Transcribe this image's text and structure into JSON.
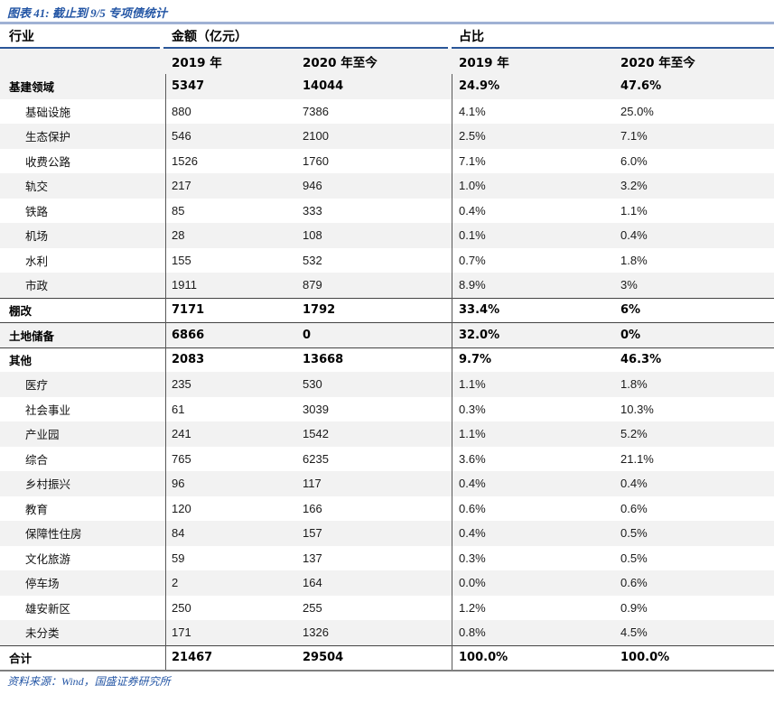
{
  "title": "图表 41: 截止到 9/5 专项债统计",
  "source": "资料来源：Wind，国盛证券研究所",
  "colors": {
    "accent_blue": "#2456A5",
    "header_rule_dark": "#2A5699",
    "header_rule_light": "#9FB1D4",
    "stripe_gray": "#F2F2F2",
    "section_rule": "#444444",
    "divider_gray": "#595959",
    "bottom_rule": "#7F7F7F"
  },
  "table": {
    "group_headers": [
      "行业",
      "金额（亿元）",
      "占比"
    ],
    "sub_headers": [
      "2019 年",
      "2020 年至今",
      "2019 年",
      "2020 年至今"
    ],
    "rows": [
      {
        "label": "基建领域",
        "amt_2019": "5347",
        "amt_2020": "14044",
        "pct_2019": "24.9%",
        "pct_2020": "47.6%",
        "style": "section",
        "stripe": true,
        "sep_top": false
      },
      {
        "label": "基础设施",
        "amt_2019": "880",
        "amt_2020": "7386",
        "pct_2019": "4.1%",
        "pct_2020": "25.0%",
        "style": "sub",
        "stripe": false,
        "sep_top": false
      },
      {
        "label": "生态保护",
        "amt_2019": "546",
        "amt_2020": "2100",
        "pct_2019": "2.5%",
        "pct_2020": "7.1%",
        "style": "sub",
        "stripe": true,
        "sep_top": false
      },
      {
        "label": "收费公路",
        "amt_2019": "1526",
        "amt_2020": "1760",
        "pct_2019": "7.1%",
        "pct_2020": "6.0%",
        "style": "sub",
        "stripe": false,
        "sep_top": false
      },
      {
        "label": "轨交",
        "amt_2019": "217",
        "amt_2020": "946",
        "pct_2019": "1.0%",
        "pct_2020": "3.2%",
        "style": "sub",
        "stripe": true,
        "sep_top": false
      },
      {
        "label": "铁路",
        "amt_2019": "85",
        "amt_2020": "333",
        "pct_2019": "0.4%",
        "pct_2020": "1.1%",
        "style": "sub",
        "stripe": false,
        "sep_top": false
      },
      {
        "label": "机场",
        "amt_2019": "28",
        "amt_2020": "108",
        "pct_2019": "0.1%",
        "pct_2020": "0.4%",
        "style": "sub",
        "stripe": true,
        "sep_top": false
      },
      {
        "label": "水利",
        "amt_2019": "155",
        "amt_2020": "532",
        "pct_2019": "0.7%",
        "pct_2020": "1.8%",
        "style": "sub",
        "stripe": false,
        "sep_top": false
      },
      {
        "label": "市政",
        "amt_2019": "1911",
        "amt_2020": "879",
        "pct_2019": "8.9%",
        "pct_2020": "3%",
        "style": "sub",
        "stripe": true,
        "sep_top": false
      },
      {
        "label": "棚改",
        "amt_2019": "7171",
        "amt_2020": "1792",
        "pct_2019": "33.4%",
        "pct_2020": "6%",
        "style": "section",
        "stripe": false,
        "sep_top": true
      },
      {
        "label": "土地储备",
        "amt_2019": "6866",
        "amt_2020": "0",
        "pct_2019": "32.0%",
        "pct_2020": "0%",
        "style": "section",
        "stripe": true,
        "sep_top": true
      },
      {
        "label": "其他",
        "amt_2019": "2083",
        "amt_2020": "13668",
        "pct_2019": "9.7%",
        "pct_2020": "46.3%",
        "style": "section",
        "stripe": false,
        "sep_top": true
      },
      {
        "label": "医疗",
        "amt_2019": "235",
        "amt_2020": "530",
        "pct_2019": "1.1%",
        "pct_2020": "1.8%",
        "style": "sub",
        "stripe": true,
        "sep_top": false
      },
      {
        "label": "社会事业",
        "amt_2019": "61",
        "amt_2020": "3039",
        "pct_2019": "0.3%",
        "pct_2020": "10.3%",
        "style": "sub",
        "stripe": false,
        "sep_top": false
      },
      {
        "label": "产业园",
        "amt_2019": "241",
        "amt_2020": "1542",
        "pct_2019": "1.1%",
        "pct_2020": "5.2%",
        "style": "sub",
        "stripe": true,
        "sep_top": false
      },
      {
        "label": "综合",
        "amt_2019": "765",
        "amt_2020": "6235",
        "pct_2019": "3.6%",
        "pct_2020": "21.1%",
        "style": "sub",
        "stripe": false,
        "sep_top": false
      },
      {
        "label": "乡村振兴",
        "amt_2019": "96",
        "amt_2020": "117",
        "pct_2019": "0.4%",
        "pct_2020": "0.4%",
        "style": "sub",
        "stripe": true,
        "sep_top": false
      },
      {
        "label": "教育",
        "amt_2019": "120",
        "amt_2020": "166",
        "pct_2019": "0.6%",
        "pct_2020": "0.6%",
        "style": "sub",
        "stripe": false,
        "sep_top": false
      },
      {
        "label": "保障性住房",
        "amt_2019": "84",
        "amt_2020": "157",
        "pct_2019": "0.4%",
        "pct_2020": "0.5%",
        "style": "sub",
        "stripe": true,
        "sep_top": false
      },
      {
        "label": "文化旅游",
        "amt_2019": "59",
        "amt_2020": "137",
        "pct_2019": "0.3%",
        "pct_2020": "0.5%",
        "style": "sub",
        "stripe": false,
        "sep_top": false
      },
      {
        "label": "停车场",
        "amt_2019": "2",
        "amt_2020": "164",
        "pct_2019": "0.0%",
        "pct_2020": "0.6%",
        "style": "sub",
        "stripe": true,
        "sep_top": false
      },
      {
        "label": "雄安新区",
        "amt_2019": "250",
        "amt_2020": "255",
        "pct_2019": "1.2%",
        "pct_2020": "0.9%",
        "style": "sub",
        "stripe": false,
        "sep_top": false
      },
      {
        "label": "未分类",
        "amt_2019": "171",
        "amt_2020": "1326",
        "pct_2019": "0.8%",
        "pct_2020": "4.5%",
        "style": "sub",
        "stripe": true,
        "sep_top": false
      },
      {
        "label": "合计",
        "amt_2019": "21467",
        "amt_2020": "29504",
        "pct_2019": "100.0%",
        "pct_2020": "100.0%",
        "style": "total",
        "stripe": false,
        "sep_top": true
      }
    ]
  }
}
